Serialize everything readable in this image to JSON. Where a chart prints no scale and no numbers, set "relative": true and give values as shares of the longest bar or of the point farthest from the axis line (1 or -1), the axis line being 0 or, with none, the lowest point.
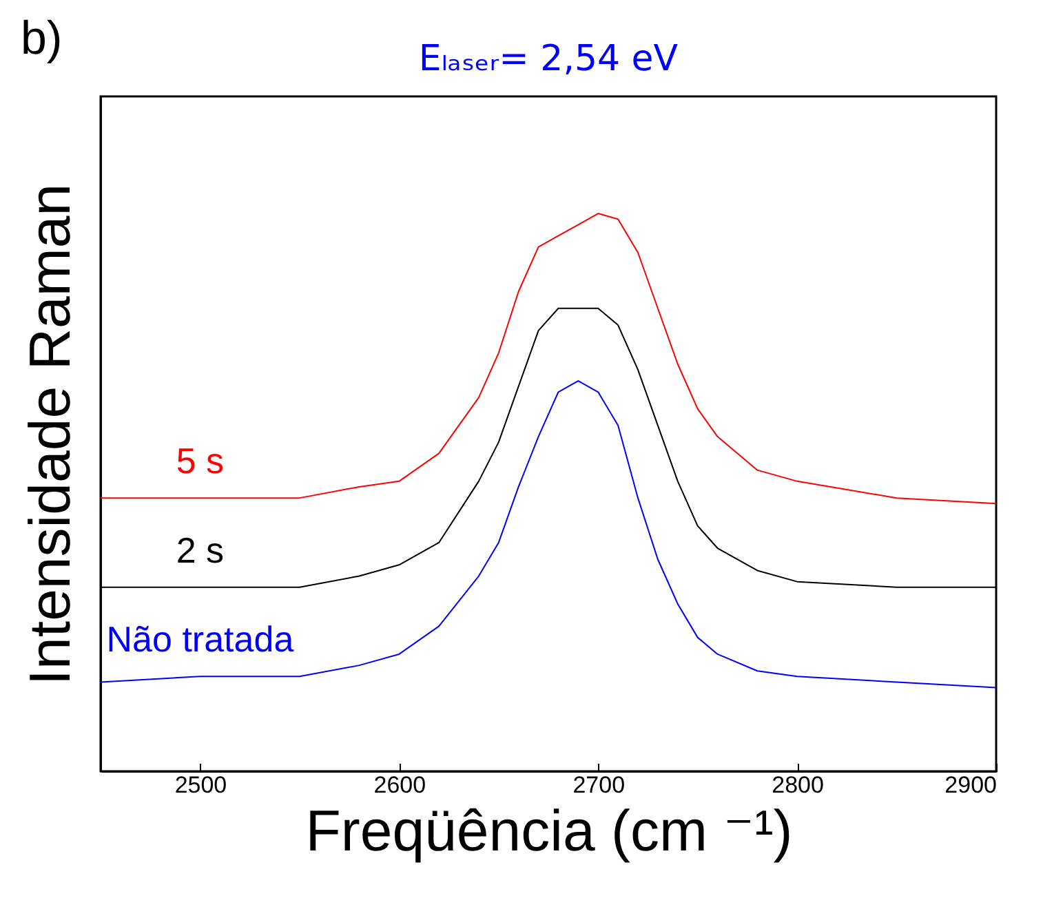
{
  "chart_data": {
    "type": "line",
    "title": "Eₗₐₛₑᵣ= 2,54 eV",
    "xlabel": "Freqüência (cm ⁻¹)",
    "ylabel": "Intensidade Raman",
    "annotations": [
      "b)"
    ],
    "relative": true,
    "x": [
      2450,
      2500,
      2550,
      2580,
      2600,
      2620,
      2640,
      2650,
      2660,
      2670,
      2680,
      2690,
      2700,
      2710,
      2720,
      2730,
      2740,
      2750,
      2760,
      2780,
      2800,
      2850,
      2900
    ],
    "xlim": [
      2450,
      2900
    ],
    "xticks": [
      2500,
      2600,
      2700,
      2800,
      2900
    ],
    "series": [
      {
        "name": "5 s",
        "color": "#ff0000",
        "values": [
          0.49,
          0.49,
          0.49,
          0.51,
          0.52,
          0.57,
          0.67,
          0.75,
          0.86,
          0.94,
          0.96,
          0.98,
          1.0,
          0.99,
          0.93,
          0.83,
          0.73,
          0.65,
          0.6,
          0.54,
          0.52,
          0.49,
          0.48
        ]
      },
      {
        "name": "2 s",
        "color": "#000000",
        "values": [
          0.33,
          0.33,
          0.33,
          0.35,
          0.37,
          0.41,
          0.52,
          0.59,
          0.69,
          0.79,
          0.83,
          0.83,
          0.83,
          0.8,
          0.72,
          0.62,
          0.52,
          0.44,
          0.4,
          0.36,
          0.34,
          0.33,
          0.33
        ]
      },
      {
        "name": "Não tratada",
        "color": "#0000ff",
        "values": [
          0.16,
          0.17,
          0.17,
          0.19,
          0.21,
          0.26,
          0.35,
          0.41,
          0.51,
          0.6,
          0.68,
          0.7,
          0.68,
          0.62,
          0.49,
          0.38,
          0.3,
          0.24,
          0.21,
          0.18,
          0.17,
          0.16,
          0.15
        ]
      }
    ]
  }
}
